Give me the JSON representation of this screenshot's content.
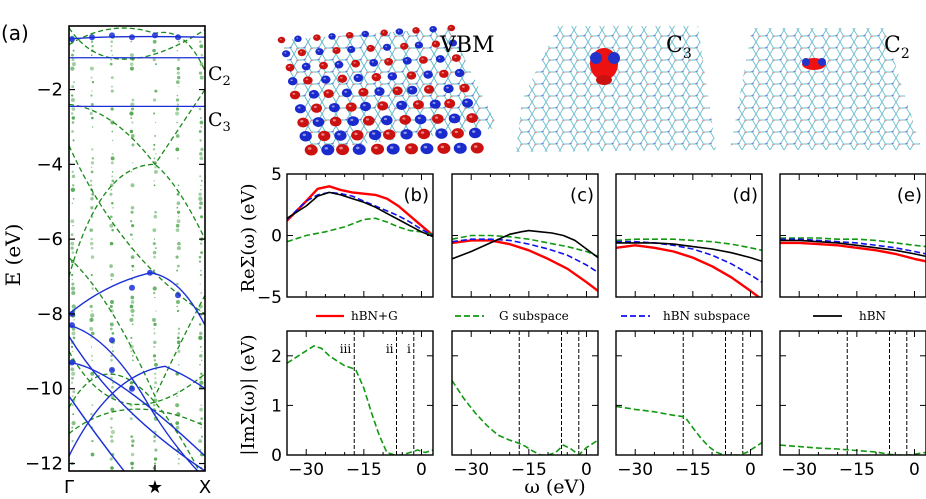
{
  "colors": {
    "hbn_g": "#ff0000",
    "g_sub": "#119911",
    "hbn_sub": "#1111ee",
    "hbn": "#000000",
    "band_blue": "#1a2fd6",
    "band_green": "#1a8a1a"
  },
  "icons": [
    "vbm-isosurface-render",
    "c3-defect-isosurface-render",
    "c2-defect-isosurface-render",
    "star-icon"
  ],
  "panel_a": {
    "label": "(a)",
    "ylabel": "E (eV)",
    "xticks": [
      "Γ",
      "★",
      "X"
    ],
    "yticks": [
      "−2",
      "−4",
      "−6",
      "−8",
      "−10",
      "−12"
    ],
    "ylim": [
      -12.2,
      -0.3
    ],
    "level_labels": [
      "C",
      "C"
    ],
    "level_subs": [
      "2",
      "3"
    ],
    "level_energies": [
      -1.15,
      -2.45
    ]
  },
  "structure_labels": {
    "vbm": "VBM",
    "c3": "C",
    "c3_sub": "3",
    "c2": "C",
    "c2_sub": "2"
  },
  "re_ylabel": "ReΣ(ω) (eV)",
  "im_ylabel": "|ImΣ(ω)| (eV)",
  "xlabel": "ω (eV)",
  "legend": [
    "hBN+G",
    "G subspace",
    "hBN subspace",
    "hBN"
  ],
  "chart_data": [
    {
      "type": "line",
      "title": "(b)",
      "ylabel": "ReΣ(ω) (eV)",
      "xlim": [
        -35,
        3
      ],
      "ylim": [
        -5,
        5
      ],
      "xticks": [
        "−30",
        "−15",
        "0"
      ],
      "yticks": [
        "5",
        "0",
        "−5"
      ],
      "series": [
        {
          "name": "hBN+G",
          "x": [
            -35,
            -30,
            -27,
            -24,
            -21,
            -18,
            -15,
            -12,
            -9,
            -6,
            -3,
            0,
            3
          ],
          "y": [
            1.2,
            2.8,
            3.8,
            4.0,
            3.7,
            3.5,
            3.4,
            3.3,
            3.0,
            2.4,
            1.6,
            0.8,
            0.0
          ]
        },
        {
          "name": "G subspace",
          "x": [
            -35,
            -30,
            -25,
            -20,
            -15,
            -12,
            -9,
            -6,
            -3,
            0,
            3
          ],
          "y": [
            -0.5,
            0.0,
            0.3,
            0.7,
            1.3,
            1.4,
            1.1,
            0.7,
            0.4,
            0.3,
            0.1
          ]
        },
        {
          "name": "hBN subspace",
          "x": [
            -35,
            -30,
            -27,
            -24,
            -21,
            -18,
            -15,
            -12,
            -9,
            -6,
            -3,
            0,
            3
          ],
          "y": [
            1.3,
            2.8,
            3.3,
            3.5,
            3.4,
            3.2,
            2.8,
            2.4,
            2.0,
            1.6,
            1.1,
            0.5,
            0.0
          ]
        },
        {
          "name": "hBN",
          "x": [
            -35,
            -30,
            -27,
            -24,
            -21,
            -18,
            -15,
            -12,
            -9,
            -6,
            -3,
            0,
            3
          ],
          "y": [
            1.4,
            2.4,
            3.2,
            3.5,
            3.3,
            3.0,
            2.7,
            2.3,
            1.8,
            1.3,
            0.8,
            0.3,
            -0.1
          ]
        }
      ]
    },
    {
      "type": "line",
      "title": "(c)",
      "xlim": [
        -35,
        3
      ],
      "ylim": [
        -5,
        5
      ],
      "xticks": [
        "−30",
        "−15",
        "0"
      ],
      "series": [
        {
          "name": "hBN+G",
          "x": [
            -35,
            -30,
            -25,
            -20,
            -15,
            -10,
            -5,
            0,
            3
          ],
          "y": [
            -0.6,
            -0.4,
            -0.4,
            -0.7,
            -1.2,
            -1.9,
            -2.7,
            -3.8,
            -4.5
          ]
        },
        {
          "name": "G subspace",
          "x": [
            -35,
            -30,
            -25,
            -20,
            -15,
            -10,
            -5,
            0,
            3
          ],
          "y": [
            -0.3,
            0.0,
            0.0,
            -0.1,
            -0.3,
            -0.6,
            -0.9,
            -1.3,
            -1.7
          ]
        },
        {
          "name": "hBN subspace",
          "x": [
            -35,
            -30,
            -25,
            -20,
            -15,
            -10,
            -5,
            0,
            3
          ],
          "y": [
            -0.5,
            -0.3,
            -0.3,
            -0.4,
            -0.7,
            -1.1,
            -1.6,
            -2.4,
            -3.0
          ]
        },
        {
          "name": "hBN",
          "x": [
            -35,
            -30,
            -25,
            -20,
            -17,
            -15,
            -12,
            -9,
            -6,
            -3,
            0,
            3
          ],
          "y": [
            -1.9,
            -1.3,
            -0.6,
            0.1,
            0.3,
            0.4,
            0.3,
            0.2,
            0.0,
            -0.4,
            -1.1,
            -1.8
          ]
        }
      ]
    },
    {
      "type": "line",
      "title": "(d)",
      "xlim": [
        -35,
        3
      ],
      "ylim": [
        -5,
        5
      ],
      "xticks": [
        "−30",
        "−15",
        "0"
      ],
      "series": [
        {
          "name": "hBN+G",
          "x": [
            -35,
            -30,
            -25,
            -20,
            -15,
            -10,
            -5,
            0,
            3
          ],
          "y": [
            -1.0,
            -0.8,
            -1.0,
            -1.3,
            -1.8,
            -2.5,
            -3.4,
            -4.5,
            -5.2
          ]
        },
        {
          "name": "G subspace",
          "x": [
            -35,
            -30,
            -25,
            -20,
            -15,
            -10,
            -5,
            0,
            3
          ],
          "y": [
            -0.4,
            -0.3,
            -0.3,
            -0.3,
            -0.4,
            -0.5,
            -0.7,
            -1.0,
            -1.2
          ]
        },
        {
          "name": "hBN subspace",
          "x": [
            -35,
            -30,
            -25,
            -20,
            -15,
            -10,
            -5,
            0,
            3
          ],
          "y": [
            -0.5,
            -0.5,
            -0.6,
            -0.8,
            -1.1,
            -1.6,
            -2.3,
            -3.2,
            -3.8
          ]
        },
        {
          "name": "hBN",
          "x": [
            -35,
            -30,
            -25,
            -20,
            -15,
            -10,
            -5,
            0,
            3
          ],
          "y": [
            -0.6,
            -0.6,
            -0.6,
            -0.7,
            -0.9,
            -1.1,
            -1.4,
            -1.8,
            -2.1
          ]
        }
      ]
    },
    {
      "type": "line",
      "title": "(e)",
      "xlim": [
        -35,
        3
      ],
      "ylim": [
        -5,
        5
      ],
      "xticks": [
        "−30",
        "−15",
        "0"
      ],
      "series": [
        {
          "name": "hBN+G",
          "x": [
            -35,
            -30,
            -25,
            -20,
            -15,
            -10,
            -5,
            0,
            3
          ],
          "y": [
            -0.6,
            -0.6,
            -0.7,
            -0.8,
            -1.0,
            -1.2,
            -1.5,
            -1.9,
            -2.1
          ]
        },
        {
          "name": "G subspace",
          "x": [
            -35,
            -30,
            -25,
            -20,
            -15,
            -10,
            -5,
            0,
            3
          ],
          "y": [
            -0.2,
            -0.2,
            -0.2,
            -0.3,
            -0.3,
            -0.4,
            -0.6,
            -0.8,
            -0.9
          ]
        },
        {
          "name": "hBN subspace",
          "x": [
            -35,
            -30,
            -25,
            -20,
            -15,
            -10,
            -5,
            0,
            3
          ],
          "y": [
            -0.3,
            -0.3,
            -0.4,
            -0.5,
            -0.6,
            -0.8,
            -1.0,
            -1.3,
            -1.5
          ]
        },
        {
          "name": "hBN",
          "x": [
            -35,
            -30,
            -25,
            -20,
            -15,
            -10,
            -5,
            0,
            3
          ],
          "y": [
            -0.4,
            -0.4,
            -0.5,
            -0.6,
            -0.8,
            -1.0,
            -1.2,
            -1.5,
            -1.7
          ]
        }
      ]
    },
    {
      "type": "line",
      "title": "",
      "ylabel": "|ImΣ(ω)| (eV)",
      "xlabel": "ω (eV)",
      "xlim": [
        -35,
        3
      ],
      "ylim": [
        0,
        2.5
      ],
      "xticks": [
        "−30",
        "−15",
        "0"
      ],
      "yticks": [
        "2",
        "1",
        "0"
      ],
      "vlines": [
        -17.5,
        -6.5,
        -2.0
      ],
      "vline_labels": [
        "iii",
        "ii",
        "i"
      ],
      "series": [
        {
          "name": "G subspace",
          "x": [
            -35,
            -32,
            -30,
            -28,
            -26,
            -24,
            -22,
            -20,
            -18,
            -17,
            -15,
            -13,
            -11,
            -9,
            -7,
            -5,
            -3,
            -1,
            1,
            3
          ],
          "y": [
            1.85,
            2.0,
            2.1,
            2.2,
            2.15,
            2.0,
            1.9,
            1.8,
            1.75,
            1.7,
            1.35,
            0.85,
            0.4,
            0.05,
            0.0,
            0.0,
            0.05,
            0.1,
            0.05,
            0.1
          ]
        }
      ]
    },
    {
      "type": "line",
      "title": "",
      "xlim": [
        -35,
        3
      ],
      "ylim": [
        0,
        2.5
      ],
      "xticks": [
        "−30",
        "−15",
        "0"
      ],
      "vlines": [
        -17.5,
        -6.5,
        -2.0
      ],
      "series": [
        {
          "name": "G subspace",
          "x": [
            -35,
            -32,
            -29,
            -26,
            -23,
            -20,
            -18,
            -16,
            -14,
            -12,
            -10,
            -8,
            -6,
            -4,
            -2,
            0,
            2,
            3
          ],
          "y": [
            1.5,
            1.15,
            0.85,
            0.6,
            0.4,
            0.3,
            0.25,
            0.18,
            0.08,
            0.0,
            0.0,
            0.05,
            0.2,
            0.12,
            0.0,
            0.15,
            0.25,
            0.3
          ]
        }
      ]
    },
    {
      "type": "line",
      "title": "",
      "xlim": [
        -35,
        3
      ],
      "ylim": [
        0,
        2.5
      ],
      "xticks": [
        "−30",
        "−15",
        "0"
      ],
      "vlines": [
        -17.5,
        -6.5,
        -2.0
      ],
      "series": [
        {
          "name": "G subspace",
          "x": [
            -35,
            -30,
            -25,
            -20,
            -18,
            -17,
            -15,
            -13,
            -11,
            -9,
            -7,
            -5,
            -3,
            -1,
            1,
            3
          ],
          "y": [
            0.98,
            0.92,
            0.87,
            0.8,
            0.78,
            0.76,
            0.55,
            0.35,
            0.18,
            0.06,
            0.0,
            0.0,
            0.0,
            0.05,
            0.15,
            0.25
          ]
        }
      ]
    },
    {
      "type": "line",
      "title": "",
      "xlim": [
        -35,
        3
      ],
      "ylim": [
        0,
        2.5
      ],
      "xticks": [
        "−30",
        "−15",
        "0"
      ],
      "vlines": [
        -17.5,
        -6.5,
        -2.0
      ],
      "series": [
        {
          "name": "G subspace",
          "x": [
            -35,
            -30,
            -25,
            -20,
            -15,
            -10,
            -7,
            -5,
            -3,
            -1,
            1,
            3
          ],
          "y": [
            0.2,
            0.17,
            0.14,
            0.12,
            0.09,
            0.06,
            0.02,
            0.0,
            0.0,
            0.0,
            0.03,
            0.05
          ]
        }
      ]
    }
  ]
}
